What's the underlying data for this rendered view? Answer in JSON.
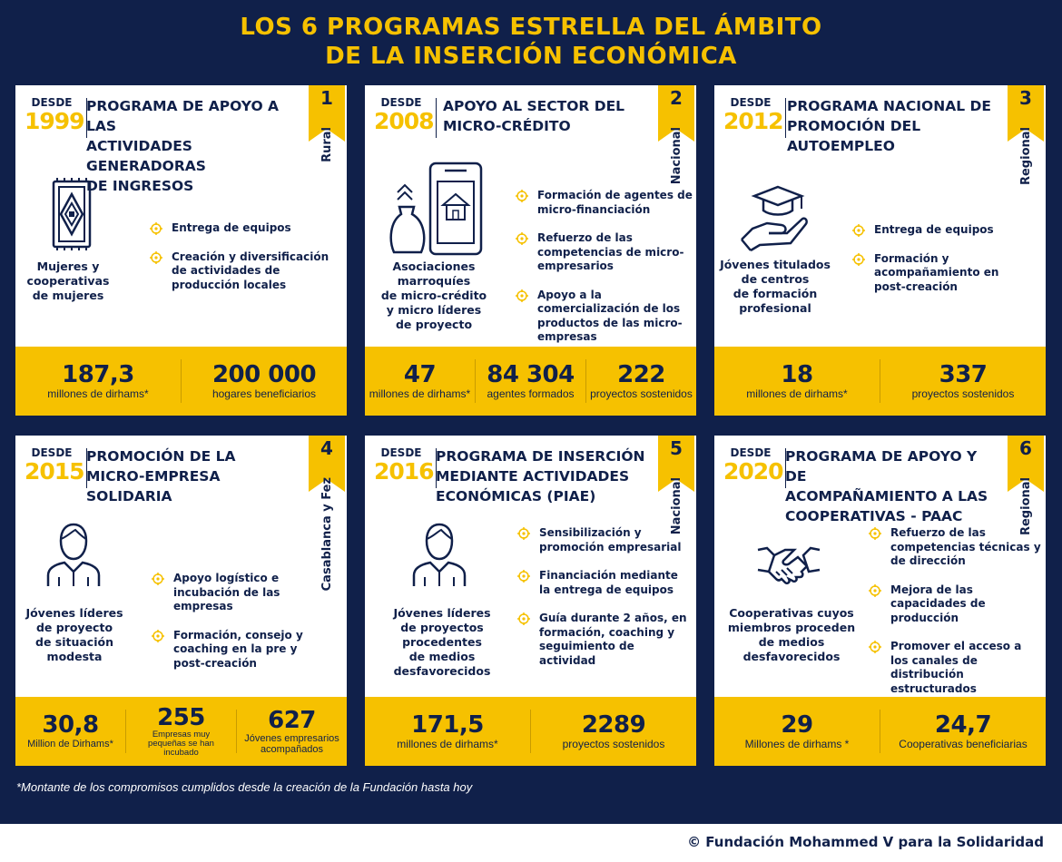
{
  "title_line1": "LOS 6 PROGRAMAS ESTRELLA DEL ÁMBITO",
  "title_line2": "DE LA INSERCIÓN ECONÓMICA",
  "since_label": "DESDE",
  "colors": {
    "navy": "#10204a",
    "yellow": "#f6c100",
    "white": "#ffffff"
  },
  "programs": [
    {
      "number": "1",
      "year": "1999",
      "scope": "Rural",
      "title": "PROGRAMA DE APOYO A LAS\nACTIVIDADES GENERADORAS\nDE INGRESOS",
      "icon": "rug-icon",
      "beneficiaries": "Mujeres y\ncooperativas\nde mujeres",
      "bullets": [
        "Entrega de equipos",
        "Creación y diversificación de actividades de producción locales"
      ],
      "stats": [
        {
          "value": "187,3",
          "label": "millones de dirhams*"
        },
        {
          "value": "200 000",
          "label": "hogares beneficiarios"
        }
      ]
    },
    {
      "number": "2",
      "year": "2008",
      "scope": "Nacional",
      "title": "APOYO AL SECTOR DEL\nMICRO-CRÉDITO",
      "icon": "money-bag-phone-icon",
      "beneficiaries": "Asociaciones\nmarroquíes\nde micro-crédito\ny micro líderes\nde proyecto",
      "bullets": [
        "Formación de agentes de micro-financiación",
        "Refuerzo de las competencias de micro-empresarios",
        "Apoyo a la comercialización de los productos de las micro-empresas"
      ],
      "stats": [
        {
          "value": "47",
          "label": "millones de dirhams*"
        },
        {
          "value": "84 304",
          "label": "agentes formados"
        },
        {
          "value": "222",
          "label": "proyectos sostenidos"
        }
      ]
    },
    {
      "number": "3",
      "year": "2012",
      "scope": "Regional",
      "title": "PROGRAMA NACIONAL DE\nPROMOCIÓN DEL AUTOEMPLEO",
      "icon": "graduation-hand-icon",
      "beneficiaries": "Jóvenes titulados\nde centros\nde formación\nprofesional",
      "bullets": [
        "Entrega de equipos",
        "Formación y acompañamiento en post-creación"
      ],
      "stats": [
        {
          "value": "18",
          "label": "millones de dirhams*"
        },
        {
          "value": "337",
          "label": "proyectos sostenidos"
        }
      ]
    },
    {
      "number": "4",
      "year": "2015",
      "scope": "Casablanca y Fez",
      "title": "PROMOCIÓN DE LA\nMICRO-EMPRESA SOLIDARIA",
      "icon": "person-icon",
      "beneficiaries": "Jóvenes líderes\nde proyecto\nde situación\nmodesta",
      "bullets": [
        "Apoyo logístico e incubación de las empresas",
        "Formación, consejo y coaching en la pre y post-creación"
      ],
      "stats": [
        {
          "value": "30,8",
          "label": "Million de Dirhams*"
        },
        {
          "value": "255",
          "label": "Empresas muy pequeñas se han incubado"
        },
        {
          "value": "627",
          "label": "Jóvenes empresarios acompañados"
        }
      ]
    },
    {
      "number": "5",
      "year": "2016",
      "scope": "Nacional",
      "title": "PROGRAMA DE INSERCIÓN\nMEDIANTE ACTIVIDADES\nECONÓMICAS (PIAE)",
      "icon": "person-icon",
      "beneficiaries": "Jóvenes líderes\nde proyectos\nprocedentes\nde medios\ndesfavorecidos",
      "bullets": [
        "Sensibilización y promoción empresarial",
        "Financiación mediante la entrega de equipos",
        "Guía durante 2 años, en formación, coaching y seguimiento de actividad"
      ],
      "stats": [
        {
          "value": "171,5",
          "label": "millones de dirhams*"
        },
        {
          "value": "2289",
          "label": "proyectos sostenidos"
        }
      ]
    },
    {
      "number": "6",
      "year": "2020",
      "scope": "Regional",
      "title": "PROGRAMA DE APOYO Y DE\nACOMPAÑAMIENTO A LAS\nCOOPERATIVAS - PAAC",
      "icon": "handshake-icon",
      "beneficiaries": "Cooperativas cuyos\nmiembros proceden\nde medios\ndesfavorecidos",
      "bullets": [
        "Refuerzo de las competencias técnicas y de dirección",
        "Mejora de las capacidades de producción",
        "Promover el acceso a los canales de distribución estructurados"
      ],
      "stats": [
        {
          "value": "29",
          "label": "Millones de dirhams *"
        },
        {
          "value": "24,7",
          "label": "Cooperativas beneficiarias"
        }
      ]
    }
  ],
  "footnote": "*Montante de los compromisos cumplidos desde la creación de la Fundación hasta hoy",
  "copyright": "© Fundación Mohammed V para la Solidaridad"
}
